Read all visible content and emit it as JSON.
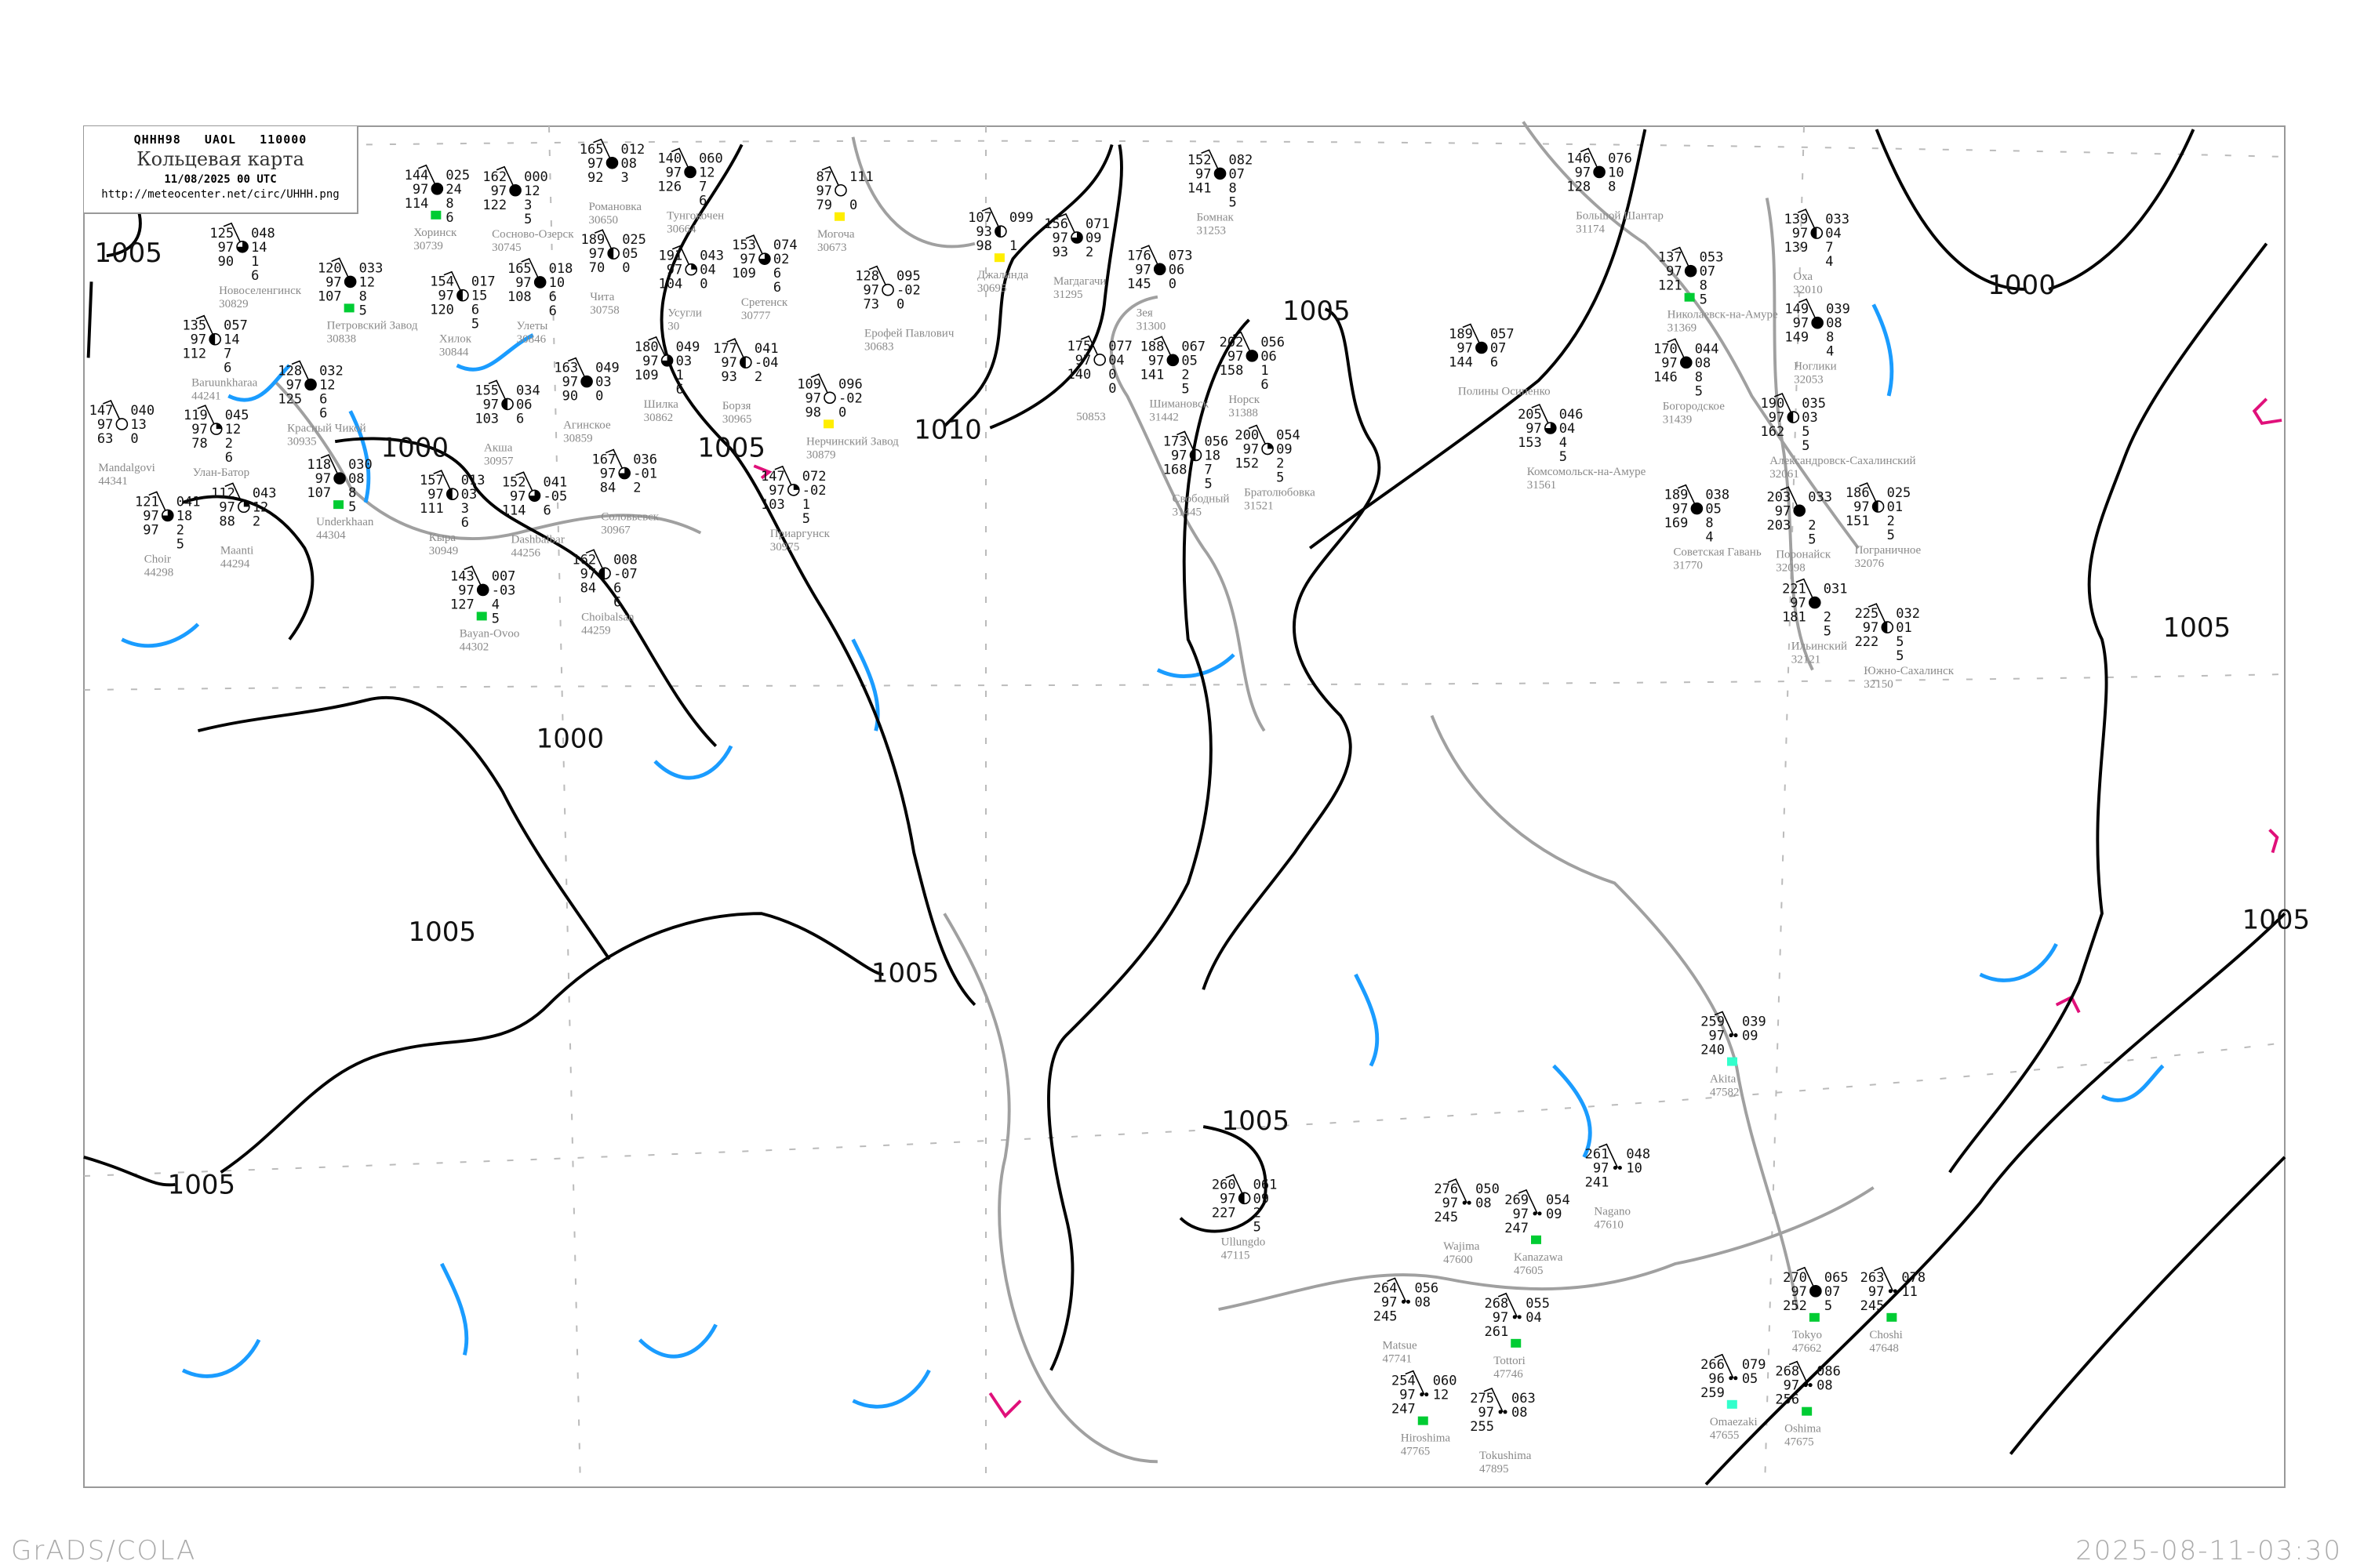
{
  "header": {
    "code": "QHHH98   UAOL   110000",
    "title": "Кольцевая карта",
    "datetime": "11/08/2025 00 UTC",
    "url": "http://meteocenter.net/circ/UHHH.png"
  },
  "footer": {
    "left": "GrADS/COLA",
    "right": "2025-08-11-03:30"
  },
  "colors": {
    "isobar": "#000000",
    "coastline": "#a0a0a0",
    "isotherm": "#1a9cff",
    "secondary": "#e0107a",
    "marker_green": "#00cc33",
    "marker_yellow": "#ffee00",
    "marker_cyan": "#33ffcc"
  },
  "isobar_labels": [
    "1005",
    "1000",
    "1005",
    "1010",
    "1005",
    "1000",
    "1005",
    "1005",
    "1005",
    "1000",
    "1005",
    "1005",
    "1005"
  ],
  "stations": [
    {
      "name": "Большой Шантар",
      "id": "31174",
      "tl": "146",
      "ml": "97",
      "bl": "128",
      "tr": "076",
      "mr": "10",
      "br1": "8",
      "br2": "",
      "cover": "full",
      "marker": ""
    },
    {
      "name": "Николаевск-на-Амуре",
      "id": "31369",
      "tl": "137",
      "ml": "97",
      "bl": "121",
      "tr": "053",
      "mr": "07",
      "br1": "8",
      "br2": "5",
      "cover": "full",
      "marker": "green"
    },
    {
      "name": "Богородское",
      "id": "31439",
      "tl": "170",
      "ml": "97",
      "bl": "146",
      "tr": "044",
      "mr": "08",
      "br1": "8",
      "br2": "5",
      "cover": "full",
      "marker": ""
    },
    {
      "name": "Оха",
      "id": "32010",
      "tl": "139",
      "ml": "97",
      "bl": "139",
      "tr": "033",
      "mr": "04",
      "br1": "7",
      "br2": "4",
      "cover": "half",
      "marker": ""
    },
    {
      "name": "Ноглики",
      "id": "32053",
      "tl": "149",
      "ml": "97",
      "bl": "149",
      "tr": "039",
      "mr": "08",
      "br1": "8",
      "br2": "4",
      "cover": "full",
      "marker": ""
    },
    {
      "name": "Александровск-Сахалинский",
      "id": "32061",
      "tl": "190",
      "ml": "97",
      "bl": "162",
      "tr": "035",
      "mr": "03",
      "br1": "5",
      "br2": "5",
      "cover": "half",
      "marker": ""
    },
    {
      "name": "Пограничное",
      "id": "32076",
      "tl": "186",
      "ml": "97",
      "bl": "151",
      "tr": "025",
      "mr": "01",
      "br1": "2",
      "br2": "5",
      "cover": "half",
      "marker": ""
    },
    {
      "name": "Комсомольск-на-Амуре",
      "id": "31561",
      "tl": "205",
      "ml": "97",
      "bl": "153",
      "tr": "046",
      "mr": "04",
      "br1": "4",
      "br2": "5",
      "cover": "three-quarter",
      "marker": ""
    },
    {
      "name": "Поронайск",
      "id": "32098",
      "tl": "203",
      "ml": "97",
      "bl": "203",
      "tr": "033",
      "mr": "",
      "br1": "2",
      "br2": "5",
      "cover": "full",
      "marker": ""
    },
    {
      "name": "Советская Гавань",
      "id": "31770",
      "tl": "189",
      "ml": "97",
      "bl": "169",
      "tr": "038",
      "mr": "05",
      "br1": "8",
      "br2": "4",
      "cover": "full",
      "marker": ""
    },
    {
      "name": "Ильинский",
      "id": "32121",
      "tl": "221",
      "ml": "97",
      "bl": "181",
      "tr": "031",
      "mr": "",
      "br1": "2",
      "br2": "5",
      "cover": "full",
      "marker": ""
    },
    {
      "name": "Южно-Сахалинск",
      "id": "32150",
      "tl": "225",
      "ml": "97",
      "bl": "222",
      "tr": "032",
      "mr": "01",
      "br1": "5",
      "br2": "5",
      "cover": "half",
      "marker": ""
    },
    {
      "name": "Полины Осипенко",
      "id": "",
      "tl": "189",
      "ml": "97",
      "bl": "144",
      "tr": "057",
      "mr": "07",
      "br1": "6",
      "br2": "",
      "cover": "full",
      "marker": ""
    },
    {
      "name": "Бомнак",
      "id": "31253",
      "tl": "152",
      "ml": "97",
      "bl": "141",
      "tr": "082",
      "mr": "07",
      "br1": "8",
      "br2": "5",
      "cover": "full",
      "marker": ""
    },
    {
      "name": "Джалинда",
      "id": "30695",
      "tl": "107",
      "ml": "93",
      "bl": "98",
      "tr": "099",
      "mr": "",
      "br1": "1",
      "br2": "",
      "cover": "half",
      "marker": "yellow"
    },
    {
      "name": "Магдагачи",
      "id": "31295",
      "tl": "156",
      "ml": "97",
      "bl": "93",
      "tr": "071",
      "mr": "09",
      "br1": "2",
      "br2": "",
      "cover": "three-quarter",
      "marker": ""
    },
    {
      "name": "Зея",
      "id": "31300",
      "tl": "176",
      "ml": "97",
      "bl": "145",
      "tr": "073",
      "mr": "06",
      "br1": "0",
      "br2": "",
      "cover": "full",
      "marker": ""
    },
    {
      "name": "Шимановск",
      "id": "31442",
      "tl": "188",
      "ml": "97",
      "bl": "141",
      "tr": "067",
      "mr": "05",
      "br1": "2",
      "br2": "5",
      "cover": "full",
      "marker": ""
    },
    {
      "name": "",
      "id": "50853",
      "tl": "175",
      "ml": "97",
      "bl": "140",
      "tr": "077",
      "mr": "04",
      "br1": "0",
      "br2": "0",
      "cover": "empty",
      "marker": ""
    },
    {
      "name": "Норск",
      "id": "31388",
      "tl": "202",
      "ml": "97",
      "bl": "158",
      "tr": "056",
      "mr": "06",
      "br1": "1",
      "br2": "6",
      "cover": "full",
      "marker": ""
    },
    {
      "name": "Свободный",
      "id": "31445",
      "tl": "173",
      "ml": "97",
      "bl": "168",
      "tr": "056",
      "mr": "18",
      "br1": "7",
      "br2": "5",
      "cover": "half",
      "marker": ""
    },
    {
      "name": "Братолюбовка",
      "id": "31521",
      "tl": "200",
      "ml": "97",
      "bl": "152",
      "tr": "054",
      "mr": "09",
      "br1": "2",
      "br2": "5",
      "cover": "quarter",
      "marker": ""
    },
    {
      "name": "Хоринск",
      "id": "30739",
      "tl": "144",
      "ml": "97",
      "bl": "114",
      "tr": "025",
      "mr": "24",
      "br1": "8",
      "br2": "6",
      "cover": "full",
      "marker": "green"
    },
    {
      "name": "Сосново-Озерск",
      "id": "30745",
      "tl": "162",
      "ml": "97",
      "bl": "122",
      "tr": "000",
      "mr": "12",
      "br1": "3",
      "br2": "5",
      "cover": "full",
      "marker": ""
    },
    {
      "name": "Романовка",
      "id": "30650",
      "tl": "165",
      "ml": "97",
      "bl": "92",
      "tr": "012",
      "mr": "08",
      "br1": "3",
      "br2": "",
      "cover": "full",
      "marker": ""
    },
    {
      "name": "Тунгокочен",
      "id": "30664",
      "tl": "140",
      "ml": "97",
      "bl": "126",
      "tr": "060",
      "mr": "12",
      "br1": "7",
      "br2": "6",
      "cover": "full",
      "marker": ""
    },
    {
      "name": "Новоселенгинск",
      "id": "30829",
      "tl": "125",
      "ml": "97",
      "bl": "90",
      "tr": "048",
      "mr": "14",
      "br1": "1",
      "br2": "6",
      "cover": "three-quarter",
      "marker": ""
    },
    {
      "name": "Петровский Завод",
      "id": "30838",
      "tl": "120",
      "ml": "97",
      "bl": "107",
      "tr": "033",
      "mr": "12",
      "br1": "8",
      "br2": "5",
      "cover": "full",
      "marker": "green"
    },
    {
      "name": "Хилок",
      "id": "30844",
      "tl": "154",
      "ml": "97",
      "bl": "120",
      "tr": "017",
      "mr": "15",
      "br1": "6",
      "br2": "5",
      "cover": "half",
      "marker": ""
    },
    {
      "name": "Красный Чикой",
      "id": "30935",
      "tl": "128",
      "ml": "97",
      "bl": "125",
      "tr": "032",
      "mr": "12",
      "br1": "6",
      "br2": "6",
      "cover": "full",
      "marker": ""
    },
    {
      "name": "Улеты",
      "id": "30846",
      "tl": "165",
      "ml": "97",
      "bl": "108",
      "tr": "018",
      "mr": "10",
      "br1": "6",
      "br2": "6",
      "cover": "full",
      "marker": ""
    },
    {
      "name": "Чита",
      "id": "30758",
      "tl": "189",
      "ml": "97",
      "bl": "70",
      "tr": "025",
      "mr": "05",
      "br1": "0",
      "br2": "",
      "cover": "half",
      "marker": ""
    },
    {
      "name": "Усугли",
      "id": "30",
      "tl": "191",
      "ml": "97",
      "bl": "104",
      "tr": "043",
      "mr": "04",
      "br1": "0",
      "br2": "",
      "cover": "quarter",
      "marker": ""
    },
    {
      "name": "Шилка",
      "id": "30862",
      "tl": "180",
      "ml": "97",
      "bl": "109",
      "tr": "049",
      "mr": "03",
      "br1": "1",
      "br2": "6",
      "cover": "three-quarter",
      "marker": ""
    },
    {
      "name": "Агинское",
      "id": "30859",
      "tl": "163",
      "ml": "97",
      "bl": "90",
      "tr": "049",
      "mr": "03",
      "br1": "0",
      "br2": "",
      "cover": "full",
      "marker": ""
    },
    {
      "name": "Baruunkharaa",
      "id": "44241",
      "tl": "135",
      "ml": "97",
      "bl": "112",
      "tr": "057",
      "mr": "14",
      "br1": "7",
      "br2": "6",
      "cover": "half",
      "marker": ""
    },
    {
      "name": "Акша",
      "id": "30957",
      "tl": "155",
      "ml": "97",
      "bl": "103",
      "tr": "034",
      "mr": "06",
      "br1": "6",
      "br2": "",
      "cover": "half",
      "marker": ""
    },
    {
      "name": "Кыра",
      "id": "30949",
      "tl": "157",
      "ml": "97",
      "bl": "111",
      "tr": "013",
      "mr": "03",
      "br1": "3",
      "br2": "6",
      "cover": "half",
      "marker": ""
    },
    {
      "name": "Борзя",
      "id": "30965",
      "tl": "177",
      "ml": "97",
      "bl": "93",
      "tr": "041",
      "mr": "-04",
      "br1": "2",
      "br2": "",
      "cover": "half",
      "marker": ""
    },
    {
      "name": "Соловьевск",
      "id": "30967",
      "tl": "167",
      "ml": "97",
      "bl": "84",
      "tr": "036",
      "mr": "-01",
      "br1": "2",
      "br2": "",
      "cover": "three-quarter",
      "marker": ""
    },
    {
      "name": "Dashbalbar",
      "id": "44256",
      "tl": "152",
      "ml": "97",
      "bl": "114",
      "tr": "041",
      "mr": "-05",
      "br1": "6",
      "br2": "",
      "cover": "three-quarter",
      "marker": ""
    },
    {
      "name": "Улан-Батор",
      "id": "",
      "tl": "119",
      "ml": "97",
      "bl": "78",
      "tr": "045",
      "mr": "12",
      "br1": "2",
      "br2": "6",
      "cover": "quarter",
      "marker": ""
    },
    {
      "name": "Maanti",
      "id": "44294",
      "tl": "112",
      "ml": "97",
      "bl": "88",
      "tr": "043",
      "mr": "12",
      "br1": "2",
      "br2": "",
      "cover": "quarter",
      "marker": ""
    },
    {
      "name": "Underkhaan",
      "id": "44304",
      "tl": "118",
      "ml": "97",
      "bl": "107",
      "tr": "030",
      "mr": "08",
      "br1": "8",
      "br2": "5",
      "cover": "full",
      "marker": "green"
    },
    {
      "name": "Bayan-Ovoo",
      "id": "44302",
      "tl": "143",
      "ml": "97",
      "bl": "127",
      "tr": "007",
      "mr": "-03",
      "br1": "4",
      "br2": "5",
      "cover": "full",
      "marker": "green"
    },
    {
      "name": "Choibalsan",
      "id": "44259",
      "tl": "162",
      "ml": "97",
      "bl": "84",
      "tr": "008",
      "mr": "-07",
      "br1": "6",
      "br2": "6",
      "cover": "half",
      "marker": ""
    },
    {
      "name": "Choir",
      "id": "44298",
      "tl": "121",
      "ml": "97",
      "bl": "97",
      "tr": "041",
      "mr": "18",
      "br1": "2",
      "br2": "5",
      "cover": "three-quarter",
      "marker": ""
    },
    {
      "name": "Mandalgovi",
      "id": "44341",
      "tl": "147",
      "ml": "97",
      "bl": "63",
      "tr": "040",
      "mr": "13",
      "br1": "0",
      "br2": "",
      "cover": "empty",
      "marker": ""
    },
    {
      "name": "Могоча",
      "id": "30673",
      "tl": "87",
      "ml": "97",
      "bl": "79",
      "tr": "111",
      "mr": "",
      "br1": "0",
      "br2": "",
      "cover": "empty",
      "marker": "yellow"
    },
    {
      "name": "Ерофей Павлович",
      "id": "30683",
      "tl": "128",
      "ml": "97",
      "bl": "73",
      "tr": "095",
      "mr": "-02",
      "br1": "0",
      "br2": "",
      "cover": "empty",
      "marker": ""
    },
    {
      "name": "Сретенск",
      "id": "30777",
      "tl": "153",
      "ml": "97",
      "bl": "109",
      "tr": "074",
      "mr": "02",
      "br1": "6",
      "br2": "6",
      "cover": "three-quarter",
      "marker": ""
    },
    {
      "name": "Нерчинский Завод",
      "id": "30879",
      "tl": "109",
      "ml": "97",
      "bl": "98",
      "tr": "096",
      "mr": "-02",
      "br1": "0",
      "br2": "",
      "cover": "empty",
      "marker": "yellow"
    },
    {
      "name": "Приаргунск",
      "id": "30975",
      "tl": "147",
      "ml": "97",
      "bl": "103",
      "tr": "072",
      "mr": "-02",
      "br1": "1",
      "br2": "5",
      "cover": "quarter",
      "marker": ""
    },
    {
      "name": "Ullungdo",
      "id": "47115",
      "tl": "260",
      "ml": "97",
      "bl": "227",
      "tr": "061",
      "mr": "09",
      "br1": "2",
      "br2": "5",
      "cover": "half",
      "marker": ""
    },
    {
      "name": "Wajima",
      "id": "47600",
      "tl": "276",
      "ml": "97",
      "bl": "245",
      "tr": "050",
      "mr": "08",
      "br1": "",
      "br2": "",
      "cover": "none",
      "marker": ""
    },
    {
      "name": "Akita",
      "id": "47582",
      "tl": "259",
      "ml": "97",
      "bl": "240",
      "tr": "039",
      "mr": "09",
      "br1": "",
      "br2": "",
      "cover": "none",
      "marker": "cyan"
    },
    {
      "name": "Tokyo",
      "id": "47662",
      "tl": "270",
      "ml": "97",
      "bl": "252",
      "tr": "065",
      "mr": "07",
      "br1": "5",
      "br2": "",
      "cover": "full",
      "marker": "green"
    },
    {
      "name": "Choshi",
      "id": "47648",
      "tl": "263",
      "ml": "97",
      "bl": "245",
      "tr": "078",
      "mr": "11",
      "br1": "",
      "br2": "",
      "cover": "none",
      "marker": "green"
    },
    {
      "name": "Nagano",
      "id": "47610",
      "tl": "261",
      "ml": "97",
      "bl": "241",
      "tr": "048",
      "mr": "10",
      "br1": "",
      "br2": "",
      "cover": "none",
      "marker": ""
    },
    {
      "name": "Oshima",
      "id": "47675",
      "tl": "268",
      "ml": "97",
      "bl": "256",
      "tr": "086",
      "mr": "08",
      "br1": "",
      "br2": "",
      "cover": "none",
      "marker": "green"
    },
    {
      "name": "Omaezaki",
      "id": "47655",
      "tl": "266",
      "ml": "96",
      "bl": "259",
      "tr": "079",
      "mr": "05",
      "br1": "",
      "br2": "",
      "cover": "none",
      "marker": "cyan"
    },
    {
      "name": "Tottori",
      "id": "47746",
      "tl": "268",
      "ml": "97",
      "bl": "261",
      "tr": "055",
      "mr": "04",
      "br1": "",
      "br2": "",
      "cover": "none",
      "marker": "green"
    },
    {
      "name": "Matsue",
      "id": "47741",
      "tl": "264",
      "ml": "97",
      "bl": "245",
      "tr": "056",
      "mr": "08",
      "br1": "",
      "br2": "",
      "cover": "none",
      "marker": ""
    },
    {
      "name": "Hiroshima",
      "id": "47765",
      "tl": "254",
      "ml": "97",
      "bl": "247",
      "tr": "060",
      "mr": "12",
      "br1": "",
      "br2": "",
      "cover": "none",
      "marker": "green"
    },
    {
      "name": "Tokushima",
      "id": "47895",
      "tl": "275",
      "ml": "97",
      "bl": "255",
      "tr": "063",
      "mr": "08",
      "br1": "",
      "br2": "",
      "cover": "none",
      "marker": ""
    },
    {
      "name": "Kanazawa",
      "id": "47605",
      "tl": "269",
      "ml": "97",
      "bl": "247",
      "tr": "054",
      "mr": "09",
      "br1": "",
      "br2": "",
      "cover": "none",
      "marker": "green"
    }
  ]
}
